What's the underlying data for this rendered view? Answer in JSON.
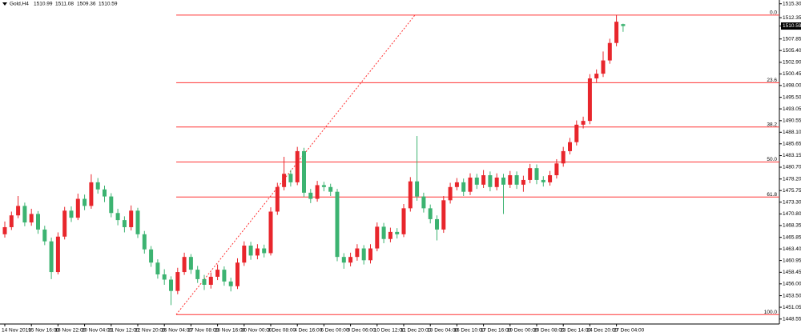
{
  "chart_data": {
    "type": "candlestick",
    "header": {
      "symbol": "Gold,H4"
    },
    "categories": [
      "14 Nov 2019",
      null,
      null,
      null,
      "15 Nov 16:00",
      null,
      null,
      null,
      "18 Nov 22:00",
      null,
      null,
      null,
      "20 Nov 04:00",
      null,
      null,
      null,
      "21 Nov 12:00",
      null,
      null,
      null,
      "22 Nov 20:00",
      null,
      null,
      null,
      "26 Nov 04:00",
      null,
      null,
      null,
      "27 Nov 08:00",
      null,
      null,
      null,
      "28 Nov 16:00",
      null,
      null,
      null,
      "30 Nov 00:00",
      null,
      null,
      null,
      "3 Dec 08:00",
      null,
      null,
      null,
      "4 Dec 16:00",
      null,
      null,
      null,
      "6 Dec 00:00",
      null,
      null,
      null,
      "9 Dec 06:00",
      null,
      null,
      null,
      "10 Dec 12:00",
      null,
      null,
      null,
      "11 Dec 20:00",
      null,
      null,
      null,
      "13 Dec 04:00",
      null,
      null,
      null,
      "16 Dec 10:00",
      null,
      null,
      null,
      "17 Dec 16:00",
      null,
      null,
      null,
      "19 Dec 00:00",
      null,
      null,
      null,
      "20 Dec 08:00",
      null,
      null,
      null,
      "23 Dec 14:00",
      null,
      null,
      null,
      "24 Dec 20:00",
      null,
      null,
      null,
      "27 Dec 04:00",
      null
    ],
    "open": [
      1466.5,
      1468.0,
      1470.5,
      1472.5,
      1469.0,
      1470.8,
      1467.5,
      1465.0,
      1458.5,
      1466.0,
      1471.5,
      1470.0,
      1474.0,
      1472.5,
      1477.5,
      1476.0,
      1474.5,
      1471.0,
      1469.5,
      1468.0,
      1471.5,
      1466.5,
      1463.3,
      1460.5,
      1458.0,
      1456.9,
      1454.5,
      1458.5,
      1461.7,
      1459.0,
      1457.0,
      1455.8,
      1457.5,
      1459.0,
      1456.5,
      1455.5,
      1460.5,
      1464.1,
      1462.0,
      1463.5,
      1462.5,
      1471.3,
      1476.5,
      1479.3,
      1477.5,
      1484.1,
      1475.3,
      1474.0,
      1476.9,
      1476.5,
      1475.5,
      1461.7,
      1460.5,
      1461.7,
      1463.5,
      1461.0,
      1463.5,
      1468.1,
      1465.5,
      1467.0,
      1466.5,
      1472.0,
      1477.7,
      1474.5,
      1472.0,
      1469.7,
      1467.5,
      1473.7,
      1476.5,
      1477.5,
      1475.5,
      1478.5,
      1477.0,
      1479.0,
      1476.5,
      1478.5,
      1477.0,
      1479.0,
      1477.0,
      1478.0,
      1480.5,
      1478.0,
      1477.5,
      1479.0,
      1481.5,
      1484.1,
      1486.0,
      1489.7,
      1490.5,
      1499.5,
      1500.5,
      1503.3,
      1507.0,
      1510.99
    ],
    "high": [
      1469.2,
      1471.3,
      1474.6,
      1473.2,
      1471.9,
      1471.4,
      1468.3,
      1465.8,
      1466.9,
      1472.3,
      1472.4,
      1475.1,
      1474.9,
      1479.2,
      1478.4,
      1476.8,
      1475.2,
      1471.9,
      1470.3,
      1472.6,
      1472.1,
      1467.2,
      1464.0,
      1461.2,
      1459.1,
      1457.6,
      1459.4,
      1462.6,
      1462.3,
      1459.8,
      1457.9,
      1458.4,
      1460.1,
      1459.7,
      1457.3,
      1461.4,
      1465.0,
      1464.9,
      1464.4,
      1464.3,
      1472.2,
      1477.4,
      1482.9,
      1480.1,
      1485.0,
      1484.8,
      1476.1,
      1477.8,
      1477.6,
      1477.2,
      1476.1,
      1462.5,
      1462.6,
      1464.4,
      1464.2,
      1464.4,
      1469.0,
      1468.9,
      1467.9,
      1467.8,
      1472.9,
      1478.6,
      1487.3,
      1475.3,
      1472.8,
      1470.5,
      1474.6,
      1477.4,
      1478.4,
      1478.3,
      1479.4,
      1479.3,
      1480.1,
      1479.8,
      1479.4,
      1479.3,
      1479.9,
      1479.8,
      1478.9,
      1481.4,
      1481.3,
      1478.8,
      1479.9,
      1482.4,
      1485.0,
      1486.9,
      1490.6,
      1491.4,
      1500.4,
      1501.4,
      1505.2,
      1507.9,
      1512.9,
      1511.08
    ],
    "low": [
      1465.8,
      1467.4,
      1469.9,
      1468.2,
      1468.3,
      1466.6,
      1464.2,
      1457.0,
      1458.0,
      1465.4,
      1469.1,
      1469.5,
      1471.6,
      1471.9,
      1475.1,
      1473.3,
      1470.1,
      1468.4,
      1466.9,
      1467.3,
      1465.7,
      1462.4,
      1459.6,
      1457.1,
      1455.8,
      1451.5,
      1453.8,
      1457.9,
      1458.1,
      1456.2,
      1454.7,
      1455.0,
      1456.8,
      1455.6,
      1454.4,
      1454.9,
      1459.8,
      1461.1,
      1461.2,
      1461.6,
      1462.0,
      1470.6,
      1475.8,
      1476.6,
      1476.9,
      1474.4,
      1473.1,
      1473.4,
      1475.6,
      1474.6,
      1460.8,
      1459.2,
      1459.7,
      1460.9,
      1460.1,
      1460.3,
      1462.9,
      1464.6,
      1464.8,
      1465.6,
      1465.9,
      1471.3,
      1473.6,
      1471.1,
      1468.8,
      1465.2,
      1466.8,
      1473.0,
      1475.8,
      1474.6,
      1474.8,
      1476.1,
      1476.3,
      1475.6,
      1475.8,
      1470.8,
      1476.3,
      1476.1,
      1475.5,
      1477.3,
      1477.1,
      1476.6,
      1476.8,
      1478.3,
      1480.8,
      1483.4,
      1485.3,
      1488.9,
      1489.8,
      1498.6,
      1499.8,
      1502.6,
      1506.3,
      1509.36
    ],
    "close": [
      1468.0,
      1470.5,
      1472.5,
      1469.0,
      1470.8,
      1467.5,
      1465.0,
      1458.5,
      1466.0,
      1471.5,
      1470.0,
      1474.0,
      1472.5,
      1477.5,
      1476.0,
      1474.5,
      1471.0,
      1469.5,
      1468.0,
      1471.5,
      1466.5,
      1463.3,
      1460.5,
      1458.0,
      1456.9,
      1454.5,
      1458.5,
      1461.7,
      1459.0,
      1457.0,
      1455.8,
      1457.5,
      1459.0,
      1456.5,
      1455.5,
      1460.5,
      1464.1,
      1462.0,
      1463.5,
      1462.5,
      1471.3,
      1476.5,
      1479.3,
      1477.5,
      1484.1,
      1475.3,
      1474.0,
      1476.9,
      1476.5,
      1475.5,
      1461.7,
      1460.5,
      1461.7,
      1463.5,
      1461.0,
      1463.5,
      1468.1,
      1465.5,
      1467.0,
      1466.5,
      1472.0,
      1477.7,
      1474.5,
      1472.0,
      1469.7,
      1467.5,
      1473.7,
      1476.5,
      1477.5,
      1475.5,
      1478.5,
      1477.0,
      1479.0,
      1476.5,
      1478.5,
      1477.0,
      1479.0,
      1477.0,
      1478.0,
      1480.5,
      1478.0,
      1477.5,
      1479.0,
      1481.5,
      1484.1,
      1486.0,
      1489.7,
      1490.5,
      1499.5,
      1500.5,
      1503.3,
      1507.0,
      1511.5,
      1510.59
    ],
    "up_color": "#e8262c",
    "down_color": "#3cb371",
    "ylim": [
      1447.5,
      1516.1
    ],
    "yticks": [
      {
        "value": 1515.3,
        "label": "1515.30"
      },
      1512.35,
      1507.85,
      {
        "value": 1505.4,
        "label": "1505.40"
      },
      {
        "value": 1502.9,
        "label": "1502.90"
      },
      1500.45,
      {
        "value": 1498,
        "label": "1498.00"
      },
      {
        "value": 1495.5,
        "label": "1495.50"
      },
      1493.05,
      1490.55,
      {
        "value": 1488.1,
        "label": "1488.10"
      },
      1485.65,
      1483.15,
      {
        "value": 1480.7,
        "label": "1480.70"
      },
      {
        "value": 1478.2,
        "label": "1478.20"
      },
      1475.75,
      {
        "value": 1473.3,
        "label": "1473.30"
      },
      {
        "value": 1470.8,
        "label": "1470.80"
      },
      1468.35,
      1465.85,
      {
        "value": 1463.4,
        "label": "1463.40"
      },
      1460.95,
      1458.45,
      {
        "value": 1456,
        "label": "1456.00"
      },
      {
        "value": 1453.5,
        "label": "1453.50"
      },
      1451.05,
      1448.55
    ],
    "fib_color": "#ff3333",
    "fib_levels": [
      {
        "label": "0.0",
        "value": 1512.9
      },
      {
        "label": "23.6",
        "value": 1498.6
      },
      {
        "label": "38.2",
        "value": 1489.2
      },
      {
        "label": "50.0",
        "value": 1481.8
      },
      {
        "label": "61.8",
        "value": 1474.4
      },
      {
        "label": "100.0",
        "value": 1449.5
      }
    ]
  }
}
